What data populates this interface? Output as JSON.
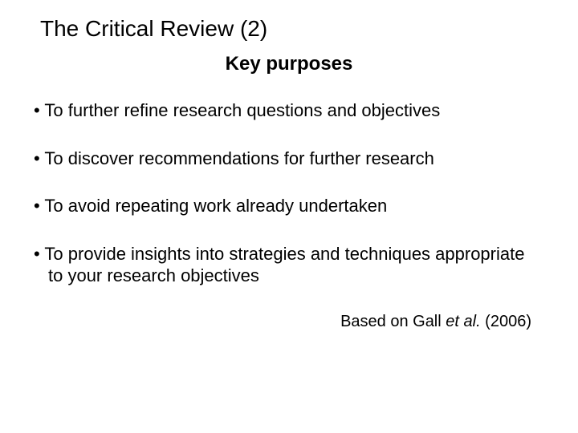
{
  "colors": {
    "background": "#ffffff",
    "text": "#000000"
  },
  "typography": {
    "family": "Arial",
    "title_size_pt": 28,
    "subtitle_size_pt": 24,
    "body_size_pt": 22,
    "attribution_size_pt": 20
  },
  "title": "The Critical Review (2)",
  "subtitle": "Key purposes",
  "bullets": [
    "To further refine research questions and objectives",
    "To discover recommendations for further research",
    "To avoid repeating work already undertaken",
    "To provide insights into strategies and techniques appropriate to your research objectives"
  ],
  "attribution": {
    "prefix": "Based on Gall ",
    "italic": "et al.",
    "suffix": " (2006)"
  }
}
